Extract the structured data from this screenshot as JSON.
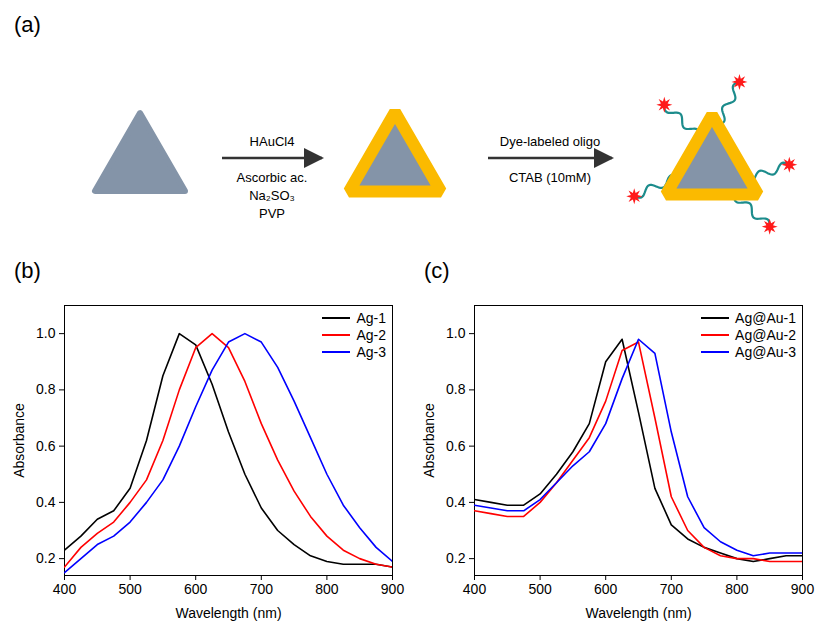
{
  "diagram": {
    "panel": "(a)",
    "steps": [
      {
        "above": [
          "HAuCl4"
        ],
        "below": [
          "Ascorbic ac.",
          "Na₂SO₃",
          "PVP"
        ]
      },
      {
        "above": [
          "Dye-labeled oligo"
        ],
        "below": [
          "CTAB (10mM)"
        ]
      }
    ]
  },
  "chart_data": [
    {
      "type": "line",
      "panel": "(b)",
      "x_label": "Wavelength (nm)",
      "y_label": "Absorbance",
      "x": [
        400,
        425,
        450,
        475,
        500,
        525,
        550,
        575,
        600,
        625,
        650,
        675,
        700,
        725,
        750,
        775,
        800,
        825,
        850,
        875,
        900
      ],
      "series": [
        {
          "name": "Ag-1",
          "color": "#000000",
          "values": [
            0.23,
            0.28,
            0.34,
            0.37,
            0.45,
            0.62,
            0.85,
            1.0,
            0.96,
            0.82,
            0.65,
            0.5,
            0.38,
            0.3,
            0.25,
            0.21,
            0.19,
            0.18,
            0.18,
            0.18,
            0.17
          ]
        },
        {
          "name": "Ag-2",
          "color": "#ff0000",
          "values": [
            0.17,
            0.24,
            0.29,
            0.33,
            0.4,
            0.48,
            0.62,
            0.8,
            0.95,
            1.0,
            0.95,
            0.83,
            0.68,
            0.55,
            0.44,
            0.35,
            0.28,
            0.23,
            0.2,
            0.18,
            0.17
          ]
        },
        {
          "name": "Ag-3",
          "color": "#0000ff",
          "values": [
            0.15,
            0.2,
            0.25,
            0.28,
            0.33,
            0.4,
            0.48,
            0.6,
            0.74,
            0.87,
            0.97,
            1.0,
            0.97,
            0.88,
            0.76,
            0.63,
            0.5,
            0.39,
            0.31,
            0.24,
            0.19
          ]
        }
      ],
      "xlim": [
        400,
        900
      ],
      "xticks": [
        400,
        500,
        600,
        700,
        800,
        900
      ],
      "ylim": [
        0.14,
        1.1
      ],
      "yticks": [
        0.2,
        0.4,
        0.6,
        0.8,
        {
          "value": 1.0,
          "label": "1.0"
        }
      ],
      "legend": "upper right"
    },
    {
      "type": "line",
      "panel": "(c)",
      "x_label": "Wavelength (nm)",
      "y_label": "Absorbance",
      "x": [
        400,
        425,
        450,
        475,
        500,
        525,
        550,
        575,
        600,
        625,
        650,
        675,
        700,
        725,
        750,
        775,
        800,
        825,
        850,
        875,
        900
      ],
      "series": [
        {
          "name": "Ag@Au-1",
          "color": "#000000",
          "values": [
            0.41,
            0.4,
            0.39,
            0.39,
            0.43,
            0.5,
            0.58,
            0.68,
            0.9,
            0.98,
            0.72,
            0.45,
            0.32,
            0.27,
            0.24,
            0.22,
            0.2,
            0.19,
            0.2,
            0.21,
            0.21
          ]
        },
        {
          "name": "Ag@Au-2",
          "color": "#ff0000",
          "values": [
            0.37,
            0.36,
            0.35,
            0.35,
            0.4,
            0.47,
            0.55,
            0.63,
            0.76,
            0.94,
            0.97,
            0.7,
            0.42,
            0.3,
            0.24,
            0.21,
            0.2,
            0.2,
            0.19,
            0.19,
            0.19
          ]
        },
        {
          "name": "Ag@Au-3",
          "color": "#0000ff",
          "values": [
            0.39,
            0.38,
            0.37,
            0.37,
            0.41,
            0.47,
            0.53,
            0.58,
            0.68,
            0.84,
            0.98,
            0.93,
            0.65,
            0.42,
            0.31,
            0.26,
            0.23,
            0.21,
            0.22,
            0.22,
            0.22
          ]
        }
      ],
      "xlim": [
        400,
        900
      ],
      "xticks": [
        400,
        500,
        600,
        700,
        800,
        900
      ],
      "ylim": [
        0.14,
        1.1
      ],
      "yticks": [
        0.2,
        0.4,
        0.6,
        0.8,
        {
          "value": 1.0,
          "label": "1.0"
        }
      ],
      "legend": "upper right"
    }
  ]
}
